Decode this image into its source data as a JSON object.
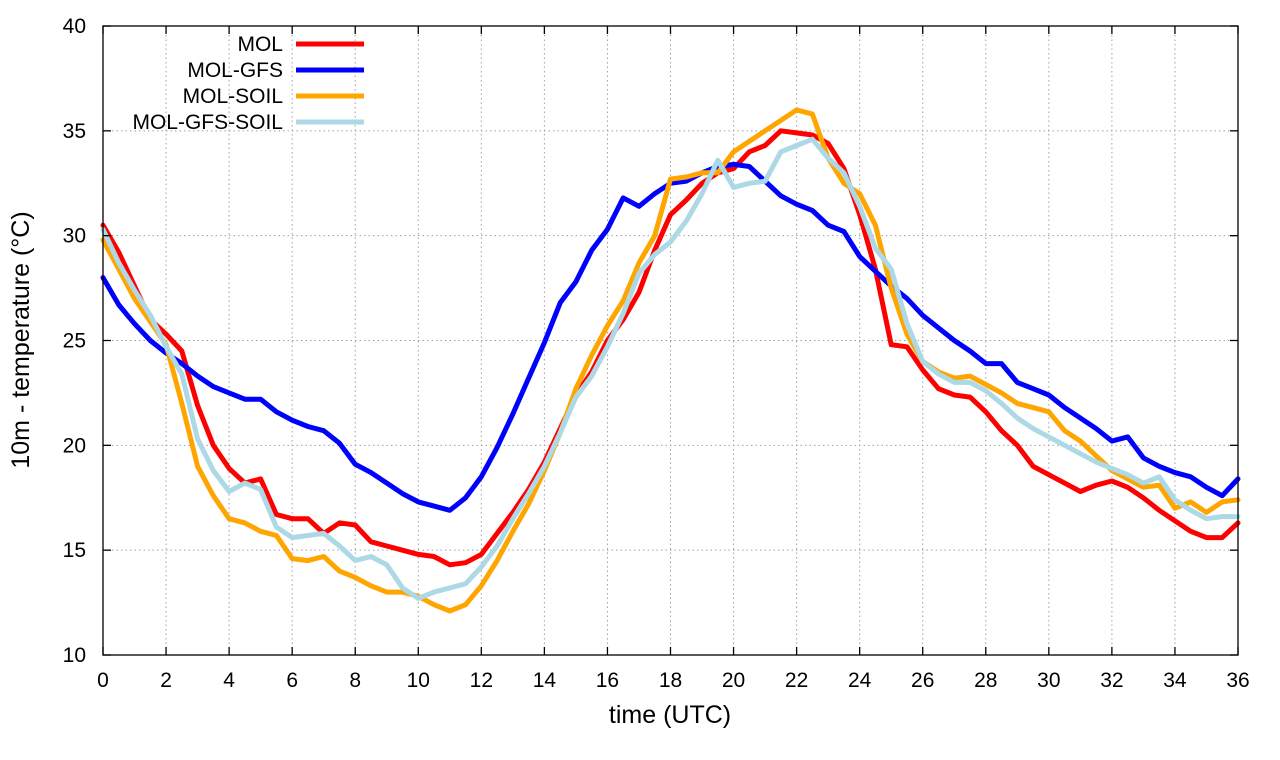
{
  "chart_data": {
    "type": "line",
    "title": "",
    "xlabel": "time (UTC)",
    "ylabel": "10m - temperature (°C)",
    "xlim": [
      0,
      36
    ],
    "ylim": [
      10,
      40
    ],
    "xticks": [
      0,
      2,
      4,
      6,
      8,
      10,
      12,
      14,
      16,
      18,
      20,
      22,
      24,
      26,
      28,
      30,
      32,
      34,
      36
    ],
    "yticks": [
      10,
      15,
      20,
      25,
      30,
      35,
      40
    ],
    "grid": true,
    "legend_position": "top-left",
    "x": [
      0,
      0.5,
      1,
      1.5,
      2,
      2.5,
      3,
      3.5,
      4,
      4.5,
      5,
      5.5,
      6,
      6.5,
      7,
      7.5,
      8,
      8.5,
      9,
      9.5,
      10,
      10.5,
      11,
      11.5,
      12,
      12.5,
      13,
      13.5,
      14,
      14.5,
      15,
      15.5,
      16,
      16.5,
      17,
      17.5,
      18,
      18.5,
      19,
      19.5,
      20,
      20.5,
      21,
      21.5,
      22,
      22.5,
      23,
      23.5,
      24,
      24.5,
      25,
      25.5,
      26,
      26.5,
      27,
      27.5,
      28,
      28.5,
      29,
      29.5,
      30,
      30.5,
      31,
      31.5,
      32,
      32.5,
      33,
      33.5,
      34,
      34.5,
      35,
      35.5,
      36
    ],
    "series": [
      {
        "name": "MOL",
        "color": "#ff0000",
        "values": [
          30.5,
          29.2,
          27.6,
          26.0,
          25.3,
          24.5,
          21.9,
          20.0,
          18.9,
          18.2,
          18.4,
          16.7,
          16.5,
          16.5,
          15.8,
          16.3,
          16.2,
          15.4,
          15.2,
          15.0,
          14.8,
          14.7,
          14.3,
          14.4,
          14.8,
          15.8,
          16.8,
          17.9,
          19.2,
          20.8,
          22.4,
          23.5,
          25.0,
          26.0,
          27.3,
          29.3,
          31.0,
          31.7,
          32.5,
          33.0,
          33.2,
          34.0,
          34.3,
          35.0,
          34.9,
          34.8,
          34.4,
          33.2,
          31.0,
          28.4,
          24.8,
          24.7,
          23.6,
          22.7,
          22.4,
          22.3,
          21.6,
          20.7,
          20.0,
          19.0,
          18.6,
          18.2,
          17.8,
          18.1,
          18.3,
          18.0,
          17.5,
          16.9,
          16.4,
          15.9,
          15.6,
          15.6,
          16.3
        ]
      },
      {
        "name": "MOL-GFS",
        "color": "#0000ff",
        "values": [
          28.0,
          26.7,
          25.8,
          25.0,
          24.4,
          23.9,
          23.3,
          22.8,
          22.5,
          22.2,
          22.2,
          21.6,
          21.2,
          20.9,
          20.7,
          20.1,
          19.1,
          18.7,
          18.2,
          17.7,
          17.3,
          17.1,
          16.9,
          17.5,
          18.5,
          19.9,
          21.5,
          23.2,
          24.9,
          26.8,
          27.8,
          29.3,
          30.3,
          31.8,
          31.4,
          32.0,
          32.5,
          32.6,
          33.0,
          33.3,
          33.4,
          33.3,
          32.6,
          31.9,
          31.5,
          31.2,
          30.5,
          30.2,
          29.0,
          28.3,
          27.6,
          27.0,
          26.2,
          25.6,
          25.0,
          24.5,
          23.9,
          23.9,
          23.0,
          22.7,
          22.4,
          21.8,
          21.3,
          20.8,
          20.2,
          20.4,
          19.4,
          19.0,
          18.7,
          18.5,
          18.0,
          17.6,
          18.4
        ]
      },
      {
        "name": "MOL-SOIL",
        "color": "#ffa500",
        "values": [
          29.8,
          28.4,
          27.0,
          25.9,
          24.8,
          22.0,
          19.0,
          17.6,
          16.5,
          16.3,
          15.9,
          15.7,
          14.6,
          14.5,
          14.7,
          14.0,
          13.7,
          13.3,
          13.0,
          13.0,
          12.8,
          12.4,
          12.1,
          12.4,
          13.3,
          14.5,
          15.9,
          17.2,
          18.8,
          20.6,
          22.7,
          24.3,
          25.7,
          26.9,
          28.7,
          30.0,
          32.7,
          32.8,
          33.0,
          33.0,
          34.0,
          34.5,
          35.0,
          35.5,
          36.0,
          35.8,
          33.7,
          32.5,
          32.0,
          30.5,
          27.5,
          25.3,
          24.0,
          23.5,
          23.2,
          23.3,
          22.9,
          22.5,
          22.0,
          21.8,
          21.6,
          20.7,
          20.2,
          19.5,
          18.8,
          18.4,
          18.0,
          18.1,
          17.0,
          17.3,
          16.8,
          17.3,
          17.4
        ]
      },
      {
        "name": "MOL-GFS-SOIL",
        "color": "#add8e6",
        "values": [
          30.3,
          28.7,
          27.4,
          26.2,
          24.7,
          23.4,
          20.3,
          18.8,
          17.8,
          18.2,
          17.9,
          16.1,
          15.6,
          15.7,
          15.8,
          15.2,
          14.5,
          14.7,
          14.3,
          13.2,
          12.7,
          13.0,
          13.2,
          13.4,
          14.2,
          15.2,
          16.5,
          17.7,
          19.0,
          20.6,
          22.3,
          23.3,
          24.7,
          26.3,
          28.2,
          29.1,
          29.7,
          30.7,
          32.0,
          33.6,
          32.3,
          32.5,
          32.6,
          34.0,
          34.3,
          34.6,
          33.7,
          33.0,
          31.4,
          29.4,
          28.4,
          25.8,
          24.0,
          23.4,
          23.0,
          23.0,
          22.6,
          22.0,
          21.3,
          20.8,
          20.4,
          20.0,
          19.6,
          19.2,
          18.9,
          18.6,
          18.2,
          18.5,
          17.4,
          16.9,
          16.5,
          16.6,
          16.6
        ]
      }
    ]
  }
}
